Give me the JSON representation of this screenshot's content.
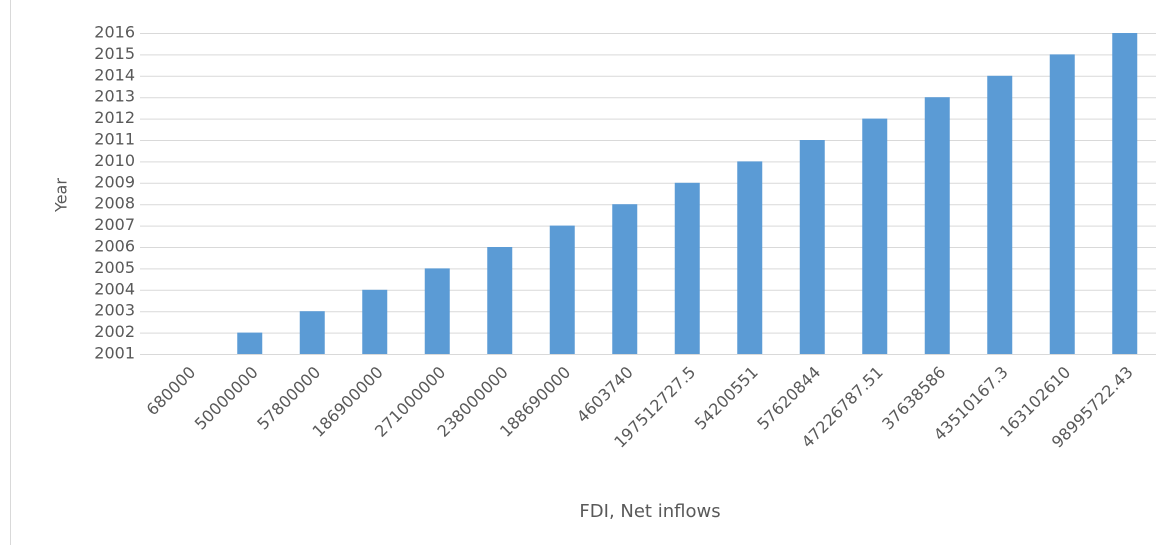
{
  "chart_data": {
    "type": "bar",
    "x_label": "FDI, Net inflows",
    "y_label": "Year",
    "categories": [
      "680000",
      "50000000",
      "57800000",
      "186900000",
      "271000000",
      "238000000",
      "188690000",
      "4603740",
      "197512727.5",
      "54200551",
      "57620844",
      "47226787.51",
      "37638586",
      "43510167.3",
      "163102610",
      "98995722.43"
    ],
    "values": [
      2001,
      2002,
      2003,
      2004,
      2005,
      2006,
      2007,
      2008,
      2009,
      2010,
      2011,
      2012,
      2013,
      2014,
      2015,
      2016
    ],
    "color": "#5b9bd5",
    "ylim": [
      2001,
      2016
    ],
    "yticks": [
      2001,
      2002,
      2003,
      2004,
      2005,
      2006,
      2007,
      2008,
      2009,
      2010,
      2011,
      2012,
      2013,
      2014,
      2015,
      2016
    ],
    "grid": true
  }
}
